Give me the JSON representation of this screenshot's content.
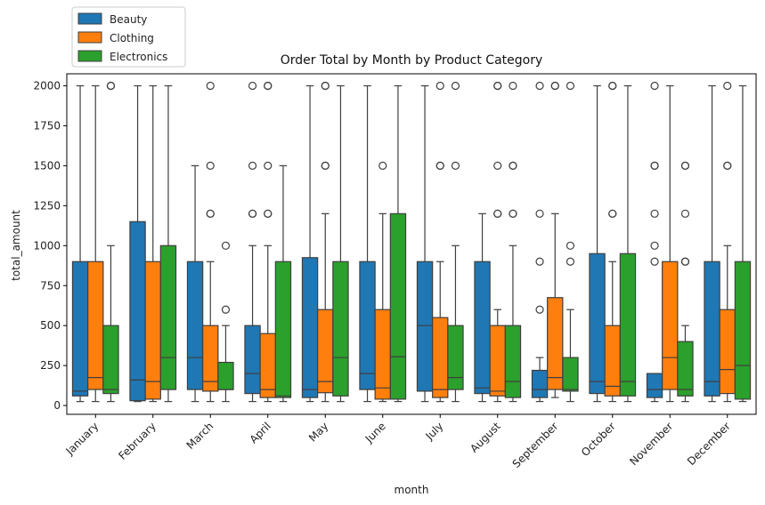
{
  "chart_data": {
    "type": "box",
    "title": "Order Total by Month by Product Category",
    "xlabel": "month",
    "ylabel": "total_amount",
    "ylim": [
      -55,
      2075
    ],
    "yticks": [
      0,
      250,
      500,
      750,
      1000,
      1250,
      1500,
      1750,
      2000
    ],
    "grid": false,
    "legend_position": "top-left",
    "categories": [
      "January",
      "February",
      "March",
      "April",
      "May",
      "June",
      "July",
      "August",
      "September",
      "October",
      "November",
      "December"
    ],
    "series": [
      {
        "name": "Beauty",
        "color": "#1f77b4",
        "boxes": [
          {
            "min": 25,
            "q1": 60,
            "median": 90,
            "q3": 900,
            "max": 2000,
            "outliers": []
          },
          {
            "min": 25,
            "q1": 30,
            "median": 160,
            "q3": 1150,
            "max": 2000,
            "outliers": []
          },
          {
            "min": 25,
            "q1": 100,
            "median": 300,
            "q3": 900,
            "max": 1500,
            "outliers": []
          },
          {
            "min": 25,
            "q1": 75,
            "median": 200,
            "q3": 500,
            "max": 1000,
            "outliers": [
              1200,
              1200,
              1500,
              2000
            ]
          },
          {
            "min": 25,
            "q1": 50,
            "median": 100,
            "q3": 925,
            "max": 2000,
            "outliers": []
          },
          {
            "min": 25,
            "q1": 100,
            "median": 200,
            "q3": 900,
            "max": 2000,
            "outliers": []
          },
          {
            "min": 25,
            "q1": 90,
            "median": 500,
            "q3": 900,
            "max": 2000,
            "outliers": []
          },
          {
            "min": 25,
            "q1": 75,
            "median": 110,
            "q3": 900,
            "max": 1200,
            "outliers": []
          },
          {
            "min": 25,
            "q1": 50,
            "median": 100,
            "q3": 220,
            "max": 300,
            "outliers": [
              600,
              900,
              1200,
              2000
            ]
          },
          {
            "min": 25,
            "q1": 75,
            "median": 150,
            "q3": 950,
            "max": 2000,
            "outliers": []
          },
          {
            "min": 25,
            "q1": 50,
            "median": 100,
            "q3": 200,
            "max": 200,
            "outliers": [
              900,
              1000,
              1200,
              1500,
              1500,
              2000
            ]
          },
          {
            "min": 25,
            "q1": 60,
            "median": 150,
            "q3": 900,
            "max": 2000,
            "outliers": []
          }
        ]
      },
      {
        "name": "Clothing",
        "color": "#ff7f0e",
        "boxes": [
          {
            "min": 25,
            "q1": 100,
            "median": 175,
            "q3": 900,
            "max": 2000,
            "outliers": []
          },
          {
            "min": 25,
            "q1": 40,
            "median": 150,
            "q3": 900,
            "max": 2000,
            "outliers": []
          },
          {
            "min": 25,
            "q1": 90,
            "median": 150,
            "q3": 500,
            "max": 900,
            "outliers": [
              1200,
              1200,
              1500,
              2000
            ]
          },
          {
            "min": 25,
            "q1": 50,
            "median": 100,
            "q3": 450,
            "max": 1000,
            "outliers": [
              1200,
              1200,
              1500,
              2000,
              2000
            ]
          },
          {
            "min": 25,
            "q1": 80,
            "median": 150,
            "q3": 600,
            "max": 1200,
            "outliers": [
              1500,
              1500,
              2000,
              2000
            ]
          },
          {
            "min": 25,
            "q1": 40,
            "median": 110,
            "q3": 600,
            "max": 1200,
            "outliers": [
              1500
            ]
          },
          {
            "min": 25,
            "q1": 50,
            "median": 100,
            "q3": 550,
            "max": 900,
            "outliers": [
              1500,
              1500,
              2000
            ]
          },
          {
            "min": 25,
            "q1": 60,
            "median": 90,
            "q3": 500,
            "max": 600,
            "outliers": [
              1200,
              1200,
              1500,
              2000,
              2000
            ]
          },
          {
            "min": 50,
            "q1": 100,
            "median": 175,
            "q3": 675,
            "max": 1200,
            "outliers": [
              2000,
              2000
            ]
          },
          {
            "min": 25,
            "q1": 60,
            "median": 120,
            "q3": 500,
            "max": 900,
            "outliers": [
              1200,
              1200,
              2000,
              2000
            ]
          },
          {
            "min": 25,
            "q1": 100,
            "median": 300,
            "q3": 900,
            "max": 2000,
            "outliers": []
          },
          {
            "min": 25,
            "q1": 75,
            "median": 225,
            "q3": 600,
            "max": 1000,
            "outliers": [
              1500,
              1500,
              2000
            ]
          }
        ]
      },
      {
        "name": "Electronics",
        "color": "#2ca02c",
        "boxes": [
          {
            "min": 25,
            "q1": 75,
            "median": 100,
            "q3": 500,
            "max": 1000,
            "outliers": [
              2000,
              2000
            ]
          },
          {
            "min": 25,
            "q1": 100,
            "median": 300,
            "q3": 1000,
            "max": 2000,
            "outliers": []
          },
          {
            "min": 25,
            "q1": 100,
            "median": 100,
            "q3": 270,
            "max": 500,
            "outliers": [
              600,
              1000
            ]
          },
          {
            "min": 25,
            "q1": 50,
            "median": 60,
            "q3": 900,
            "max": 1500,
            "outliers": []
          },
          {
            "min": 25,
            "q1": 60,
            "median": 300,
            "q3": 900,
            "max": 2000,
            "outliers": []
          },
          {
            "min": 25,
            "q1": 40,
            "median": 305,
            "q3": 1200,
            "max": 2000,
            "outliers": []
          },
          {
            "min": 25,
            "q1": 100,
            "median": 175,
            "q3": 500,
            "max": 1000,
            "outliers": [
              1500,
              2000
            ]
          },
          {
            "min": 25,
            "q1": 50,
            "median": 150,
            "q3": 500,
            "max": 1000,
            "outliers": [
              1200,
              1200,
              1500,
              1500,
              2000
            ]
          },
          {
            "min": 25,
            "q1": 90,
            "median": 100,
            "q3": 300,
            "max": 600,
            "outliers": [
              900,
              1000,
              2000
            ]
          },
          {
            "min": 25,
            "q1": 60,
            "median": 150,
            "q3": 950,
            "max": 2000,
            "outliers": []
          },
          {
            "min": 25,
            "q1": 60,
            "median": 100,
            "q3": 400,
            "max": 500,
            "outliers": [
              900,
              900,
              1200,
              1500,
              1500
            ]
          },
          {
            "min": 25,
            "q1": 40,
            "median": 250,
            "q3": 900,
            "max": 2000,
            "outliers": []
          }
        ]
      }
    ]
  }
}
